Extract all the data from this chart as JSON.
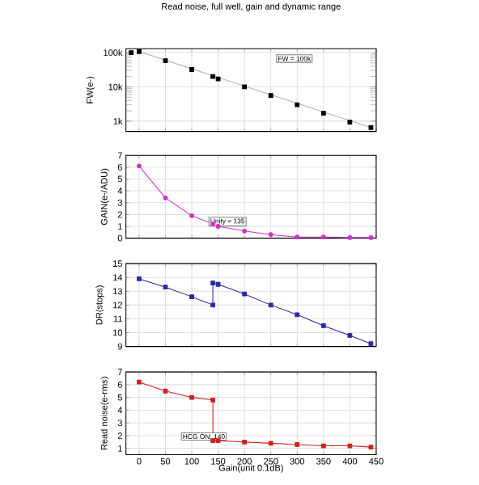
{
  "chart_data": [
    {
      "type": "scatter",
      "title": "Read noise, full well, gain and dynamic range",
      "ylabel": "FW(e-)",
      "log": "y",
      "grid": true,
      "marker": "square",
      "tick_labels": "y",
      "xlim": [
        -25,
        450
      ],
      "ylim": [
        500,
        130000
      ],
      "yticks": [
        {
          "value": 1000,
          "label": "1k"
        },
        {
          "value": 10000,
          "label": "10k"
        },
        {
          "value": 100000,
          "label": "100k"
        }
      ],
      "annotations": [
        "FW = 100k"
      ],
      "series": [
        {
          "type": "scatter",
          "color": "#000000",
          "x": [
            -15,
            0,
            50,
            100,
            140,
            150,
            200,
            250,
            300,
            350,
            400,
            440
          ],
          "values": [
            100000,
            107000,
            58000,
            32000,
            20000,
            17000,
            10000,
            5600,
            3000,
            1700,
            930,
            650
          ]
        },
        {
          "type": "line",
          "marker": "none",
          "color": "#b0b0b0",
          "x": [
            0,
            440
          ],
          "values": [
            107000,
            650
          ]
        }
      ]
    },
    {
      "type": "line",
      "ylabel": "GAIN(e-/ADU)",
      "grid": true,
      "marker": "circle",
      "tick_labels": "y",
      "xlim": [
        -25,
        450
      ],
      "ylim": [
        0,
        7
      ],
      "yticks": [
        0,
        1,
        2,
        3,
        4,
        5,
        6,
        7
      ],
      "annotations": [
        "Unity = 135"
      ],
      "series": [
        {
          "color": "#cc33cc",
          "x": [
            0,
            50,
            100,
            140,
            150,
            200,
            250,
            300,
            350,
            400,
            440
          ],
          "values": [
            6.1,
            3.4,
            1.9,
            1.2,
            1.0,
            0.6,
            0.3,
            0.1,
            0.1,
            0.05,
            0.05
          ]
        }
      ]
    },
    {
      "type": "line",
      "ylabel": "DR(stops)",
      "grid": true,
      "marker": "square",
      "tick_labels": "y",
      "xlim": [
        -25,
        450
      ],
      "ylim": [
        9,
        15
      ],
      "yticks": [
        9,
        10,
        11,
        12,
        13,
        14,
        15
      ],
      "series": [
        {
          "color": "#2a2aa0",
          "x": [
            0,
            50,
            100,
            140,
            140,
            150,
            200,
            250,
            300,
            350,
            400,
            440
          ],
          "values": [
            13.9,
            13.3,
            12.6,
            12.0,
            13.6,
            13.5,
            12.8,
            12.0,
            11.3,
            10.5,
            9.8,
            9.2
          ]
        }
      ]
    },
    {
      "type": "line",
      "ylabel": "Read noise(e-rms)",
      "xlabel": "Gain(unit 0.1dB)",
      "grid": true,
      "marker": "square",
      "xlim": [
        -25,
        450
      ],
      "xticks": [
        0,
        50,
        100,
        150,
        200,
        250,
        300,
        350,
        400,
        450
      ],
      "ylim": [
        0.5,
        7
      ],
      "yticks": [
        1,
        2,
        3,
        4,
        5,
        6,
        7
      ],
      "annotations": [
        "HCG ON: 140"
      ],
      "series": [
        {
          "color": "#cc2222",
          "x": [
            0,
            50,
            100,
            140,
            140,
            150,
            200,
            250,
            300,
            350,
            400,
            440
          ],
          "values": [
            6.2,
            5.5,
            5.0,
            4.8,
            1.6,
            1.6,
            1.5,
            1.4,
            1.3,
            1.2,
            1.2,
            1.1
          ]
        }
      ]
    }
  ]
}
